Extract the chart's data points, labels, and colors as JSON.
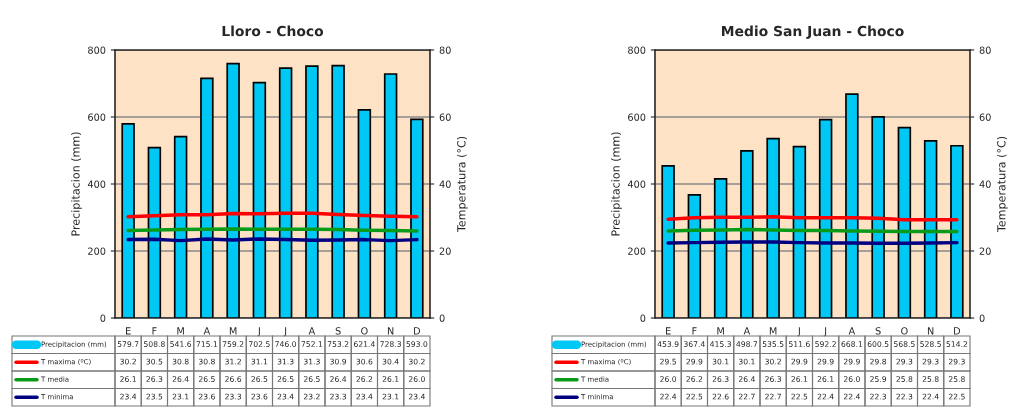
{
  "chart_data": [
    {
      "type": "bar",
      "title": "Lloro - Choco",
      "categories": [
        "E",
        "F",
        "M",
        "A",
        "M",
        "J",
        "J",
        "A",
        "S",
        "O",
        "N",
        "D"
      ],
      "ylabel": "Precipitacion (mm)",
      "y2label": "Temperatura (°C)",
      "ylim": [
        0,
        800
      ],
      "yticks": [
        0,
        200,
        400,
        600,
        800
      ],
      "y2lim": [
        0,
        80
      ],
      "y2ticks": [
        0,
        20,
        40,
        60,
        80
      ],
      "grid": "y",
      "legend": "bottom",
      "series": [
        {
          "name": "Precipitacion (mm)",
          "type": "bar",
          "color": "#00c8f5",
          "values": [
            579.7,
            508.8,
            541.6,
            715.1,
            759.2,
            702.5,
            746.0,
            752.1,
            753.2,
            621.4,
            728.3,
            593.0
          ],
          "value_labels": [
            "579.7",
            "508.8",
            "541.6",
            "715.1",
            "759.2",
            "702.5",
            "746.0",
            "752.1",
            "753.2",
            "621.4",
            "728.3",
            "593.0"
          ]
        },
        {
          "name": "T maxima (ºC)",
          "type": "line",
          "axis": "y2",
          "color": "#ff0000",
          "values": [
            30.2,
            30.5,
            30.8,
            30.8,
            31.2,
            31.1,
            31.3,
            31.3,
            30.9,
            30.6,
            30.4,
            30.2
          ],
          "value_labels": [
            "30.2",
            "30.5",
            "30.8",
            "30.8",
            "31.2",
            "31.1",
            "31.3",
            "31.3",
            "30.9",
            "30.6",
            "30.4",
            "30.2"
          ]
        },
        {
          "name": "T media",
          "type": "line",
          "axis": "y2",
          "color": "#0a9a1a",
          "values": [
            26.1,
            26.3,
            26.4,
            26.5,
            26.6,
            26.5,
            26.5,
            26.5,
            26.4,
            26.2,
            26.1,
            26.0
          ],
          "value_labels": [
            "26.1",
            "26.3",
            "26.4",
            "26.5",
            "26.6",
            "26.5",
            "26.5",
            "26.5",
            "26.4",
            "26.2",
            "26.1",
            "26.0"
          ]
        },
        {
          "name": "T minima",
          "type": "line",
          "axis": "y2",
          "color": "#000080",
          "values": [
            23.4,
            23.5,
            23.1,
            23.6,
            23.3,
            23.6,
            23.4,
            23.2,
            23.3,
            23.4,
            23.1,
            23.4
          ],
          "value_labels": [
            "23.4",
            "23.5",
            "23.1",
            "23.6",
            "23.3",
            "23.6",
            "23.4",
            "23.2",
            "23.3",
            "23.4",
            "23.1",
            "23.4"
          ]
        }
      ]
    },
    {
      "type": "bar",
      "title": "Medio San Juan - Choco",
      "categories": [
        "E",
        "F",
        "M",
        "A",
        "M",
        "J",
        "J",
        "A",
        "S",
        "O",
        "N",
        "D"
      ],
      "ylabel": "Precipitacion (mm)",
      "y2label": "Temperatura (°C)",
      "ylim": [
        0,
        800
      ],
      "yticks": [
        0,
        200,
        400,
        600,
        800
      ],
      "y2lim": [
        0,
        80
      ],
      "y2ticks": [
        0,
        20,
        40,
        60,
        80
      ],
      "grid": "y",
      "legend": "bottom",
      "series": [
        {
          "name": "Precipitacion (mm)",
          "type": "bar",
          "color": "#00c8f5",
          "values": [
            453.9,
            367.4,
            415.3,
            498.7,
            535.5,
            511.6,
            592.2,
            668.1,
            600.5,
            568.5,
            528.5,
            514.2
          ],
          "value_labels": [
            "453.9",
            "367.4",
            "415.3",
            "498.7",
            "535.5",
            "511.6",
            "592.2",
            "668.1",
            "600.5",
            "568.5",
            "528.5",
            "514.2"
          ]
        },
        {
          "name": "T maxima (ºC)",
          "type": "line",
          "axis": "y2",
          "color": "#ff0000",
          "values": [
            29.5,
            29.9,
            30.1,
            30.1,
            30.2,
            29.9,
            29.9,
            29.9,
            29.8,
            29.3,
            29.3,
            29.3
          ],
          "value_labels": [
            "29.5",
            "29.9",
            "30.1",
            "30.1",
            "30.2",
            "29.9",
            "29.9",
            "29.9",
            "29.8",
            "29.3",
            "29.3",
            "29.3"
          ]
        },
        {
          "name": "T media",
          "type": "line",
          "axis": "y2",
          "color": "#0a9a1a",
          "values": [
            26.0,
            26.2,
            26.3,
            26.4,
            26.3,
            26.1,
            26.1,
            26.0,
            25.9,
            25.8,
            25.8,
            25.8
          ],
          "value_labels": [
            "26.0",
            "26.2",
            "26.3",
            "26.4",
            "26.3",
            "26.1",
            "26.1",
            "26.0",
            "25.9",
            "25.8",
            "25.8",
            "25.8"
          ]
        },
        {
          "name": "T minima",
          "type": "line",
          "axis": "y2",
          "color": "#000080",
          "values": [
            22.4,
            22.5,
            22.6,
            22.7,
            22.7,
            22.5,
            22.4,
            22.4,
            22.3,
            22.3,
            22.4,
            22.5
          ],
          "value_labels": [
            "22.4",
            "22.5",
            "22.6",
            "22.7",
            "22.7",
            "22.5",
            "22.4",
            "22.4",
            "22.3",
            "22.3",
            "22.4",
            "22.5"
          ]
        }
      ]
    }
  ]
}
